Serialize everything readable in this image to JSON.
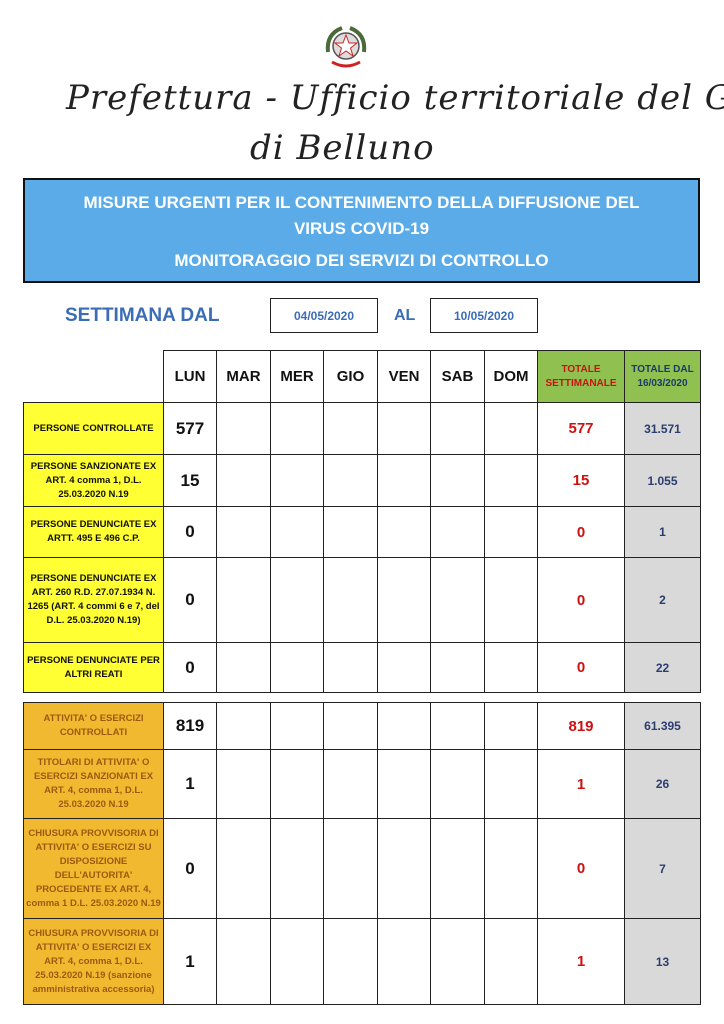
{
  "header": {
    "office_line1": "Prefettura - Ufficio territoriale del Governo",
    "office_line2": "di Belluno"
  },
  "banner": {
    "title_line1": "MISURE URGENTI PER IL CONTENIMENTO DELLA DIFFUSIONE DEL",
    "title_line2": "VIRUS COVID-19",
    "subtitle": "MONITORAGGIO DEI SERVIZI DI CONTROLLO"
  },
  "week": {
    "label": "SETTIMANA DAL",
    "from": "04/05/2020",
    "to_label": "AL",
    "to": "10/05/2020"
  },
  "table": {
    "days": [
      "LUN",
      "MAR",
      "MER",
      "GIO",
      "VEN",
      "SAB",
      "DOM"
    ],
    "weekly_total_header": "TOTALE SETTIMANALE",
    "cumulative_header": "TOTALE DAL 16/03/2020",
    "rows": [
      {
        "label": "PERSONE CONTROLLATE",
        "group": "persone",
        "values": [
          "577",
          "",
          "",
          "",
          "",
          "",
          ""
        ],
        "weekly_total": "577",
        "cumulative": "31.571"
      },
      {
        "label": "PERSONE SANZIONATE EX ART. 4 comma 1, D.L. 25.03.2020 N.19",
        "group": "persone",
        "values": [
          "15",
          "",
          "",
          "",
          "",
          "",
          ""
        ],
        "weekly_total": "15",
        "cumulative": "1.055"
      },
      {
        "label": "PERSONE DENUNCIATE EX ARTT. 495 E 496 C.P.",
        "group": "persone",
        "values": [
          "0",
          "",
          "",
          "",
          "",
          "",
          ""
        ],
        "weekly_total": "0",
        "cumulative": "1"
      },
      {
        "label": "PERSONE DENUNCIATE EX ART. 260 R.D. 27.07.1934 N. 1265 (ART. 4 commi 6 e 7, del D.L. 25.03.2020 N.19)",
        "group": "persone",
        "values": [
          "0",
          "",
          "",
          "",
          "",
          "",
          ""
        ],
        "weekly_total": "0",
        "cumulative": "2"
      },
      {
        "label": "PERSONE DENUNCIATE PER ALTRI REATI",
        "group": "persone",
        "values": [
          "0",
          "",
          "",
          "",
          "",
          "",
          ""
        ],
        "weekly_total": "0",
        "cumulative": "22"
      },
      {
        "label": "ATTIVITA' O ESERCIZI CONTROLLATI",
        "group": "attivita",
        "values": [
          "819",
          "",
          "",
          "",
          "",
          "",
          ""
        ],
        "weekly_total": "819",
        "cumulative": "61.395"
      },
      {
        "label": "TITOLARI DI ATTIVITA' O ESERCIZI SANZIONATI EX ART. 4, comma 1, D.L. 25.03.2020 N.19",
        "group": "attivita",
        "values": [
          "1",
          "",
          "",
          "",
          "",
          "",
          ""
        ],
        "weekly_total": "1",
        "cumulative": "26"
      },
      {
        "label": "CHIUSURA PROVVISORIA DI ATTIVITA' O ESERCIZI SU DISPOSIZIONE DELL'AUTORITA' PROCEDENTE EX ART. 4, comma 1 D.L. 25.03.2020 N.19",
        "group": "attivita",
        "values": [
          "0",
          "",
          "",
          "",
          "",
          "",
          ""
        ],
        "weekly_total": "0",
        "cumulative": "7"
      },
      {
        "label": "CHIUSURA PROVVISORIA DI ATTIVITA' O ESERCIZI EX ART. 4, comma 1, D.L. 25.03.2020 N.19 (sanzione amministrativa accessoria)",
        "group": "attivita",
        "values": [
          "1",
          "",
          "",
          "",
          "",
          "",
          ""
        ],
        "weekly_total": "1",
        "cumulative": "13"
      }
    ]
  },
  "colors": {
    "banner": "#5aabe8",
    "persone": "#ffff33",
    "attivita": "#f0b930",
    "weekly_header": "#8fc050",
    "cumulative": "#d9d9d9",
    "weekly_total_text": "#cc1111",
    "accent_text": "#3a6db5"
  }
}
